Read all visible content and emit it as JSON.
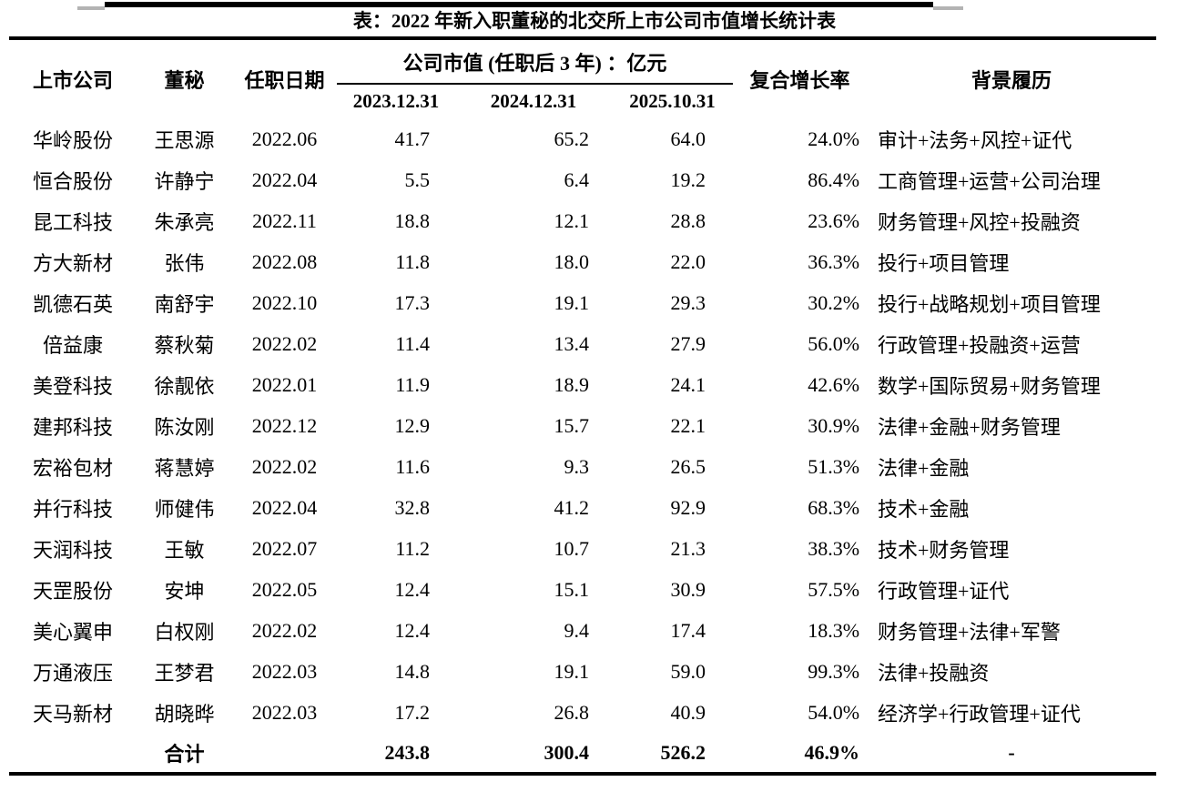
{
  "title": "表：2022 年新入职董秘的北交所上市公司市值增长统计表",
  "table": {
    "header": {
      "company": "上市公司",
      "secretary": "董秘",
      "start_date": "任职日期",
      "market_cap_group": "公司市值 (任职后 3 年) ：亿元",
      "date_cols": [
        "2023.12.31",
        "2024.12.31",
        "2025.10.31"
      ],
      "cagr": "复合增长率",
      "background": "背景履历"
    },
    "rows": [
      {
        "company": "华岭股份",
        "secretary": "王思源",
        "start_date": "2022.06",
        "mc_2023": "41.7",
        "mc_2024": "65.2",
        "mc_2025": "64.0",
        "cagr": "24.0%",
        "background": "审计+法务+风控+证代"
      },
      {
        "company": "恒合股份",
        "secretary": "许静宁",
        "start_date": "2022.04",
        "mc_2023": "5.5",
        "mc_2024": "6.4",
        "mc_2025": "19.2",
        "cagr": "86.4%",
        "background": "工商管理+运营+公司治理"
      },
      {
        "company": "昆工科技",
        "secretary": "朱承亮",
        "start_date": "2022.11",
        "mc_2023": "18.8",
        "mc_2024": "12.1",
        "mc_2025": "28.8",
        "cagr": "23.6%",
        "background": "财务管理+风控+投融资"
      },
      {
        "company": "方大新材",
        "secretary": "张伟",
        "start_date": "2022.08",
        "mc_2023": "11.8",
        "mc_2024": "18.0",
        "mc_2025": "22.0",
        "cagr": "36.3%",
        "background": "投行+项目管理"
      },
      {
        "company": "凯德石英",
        "secretary": "南舒宇",
        "start_date": "2022.10",
        "mc_2023": "17.3",
        "mc_2024": "19.1",
        "mc_2025": "29.3",
        "cagr": "30.2%",
        "background": "投行+战略规划+项目管理"
      },
      {
        "company": "倍益康",
        "secretary": "蔡秋菊",
        "start_date": "2022.02",
        "mc_2023": "11.4",
        "mc_2024": "13.4",
        "mc_2025": "27.9",
        "cagr": "56.0%",
        "background": "行政管理+投融资+运营"
      },
      {
        "company": "美登科技",
        "secretary": "徐靓依",
        "start_date": "2022.01",
        "mc_2023": "11.9",
        "mc_2024": "18.9",
        "mc_2025": "24.1",
        "cagr": "42.6%",
        "background": "数学+国际贸易+财务管理"
      },
      {
        "company": "建邦科技",
        "secretary": "陈汝刚",
        "start_date": "2022.12",
        "mc_2023": "12.9",
        "mc_2024": "15.7",
        "mc_2025": "22.1",
        "cagr": "30.9%",
        "background": "法律+金融+财务管理"
      },
      {
        "company": "宏裕包材",
        "secretary": "蒋慧婷",
        "start_date": "2022.02",
        "mc_2023": "11.6",
        "mc_2024": "9.3",
        "mc_2025": "26.5",
        "cagr": "51.3%",
        "background": "法律+金融"
      },
      {
        "company": "并行科技",
        "secretary": "师健伟",
        "start_date": "2022.04",
        "mc_2023": "32.8",
        "mc_2024": "41.2",
        "mc_2025": "92.9",
        "cagr": "68.3%",
        "background": "技术+金融"
      },
      {
        "company": "天润科技",
        "secretary": "王敏",
        "start_date": "2022.07",
        "mc_2023": "11.2",
        "mc_2024": "10.7",
        "mc_2025": "21.3",
        "cagr": "38.3%",
        "background": "技术+财务管理"
      },
      {
        "company": "天罡股份",
        "secretary": "安坤",
        "start_date": "2022.05",
        "mc_2023": "12.4",
        "mc_2024": "15.1",
        "mc_2025": "30.9",
        "cagr": "57.5%",
        "background": "行政管理+证代"
      },
      {
        "company": "美心翼申",
        "secretary": "白权刚",
        "start_date": "2022.02",
        "mc_2023": "12.4",
        "mc_2024": "9.4",
        "mc_2025": "17.4",
        "cagr": "18.3%",
        "background": "财务管理+法律+军警"
      },
      {
        "company": "万通液压",
        "secretary": "王梦君",
        "start_date": "2022.03",
        "mc_2023": "14.8",
        "mc_2024": "19.1",
        "mc_2025": "59.0",
        "cagr": "99.3%",
        "background": "法律+投融资"
      },
      {
        "company": "天马新材",
        "secretary": "胡晓晔",
        "start_date": "2022.03",
        "mc_2023": "17.2",
        "mc_2024": "26.8",
        "mc_2025": "40.9",
        "cagr": "54.0%",
        "background": "经济学+行政管理+证代"
      }
    ],
    "total": {
      "label": "合计",
      "mc_2023": "243.8",
      "mc_2024": "300.4",
      "mc_2025": "526.2",
      "cagr": "46.9%",
      "background": "-"
    }
  }
}
